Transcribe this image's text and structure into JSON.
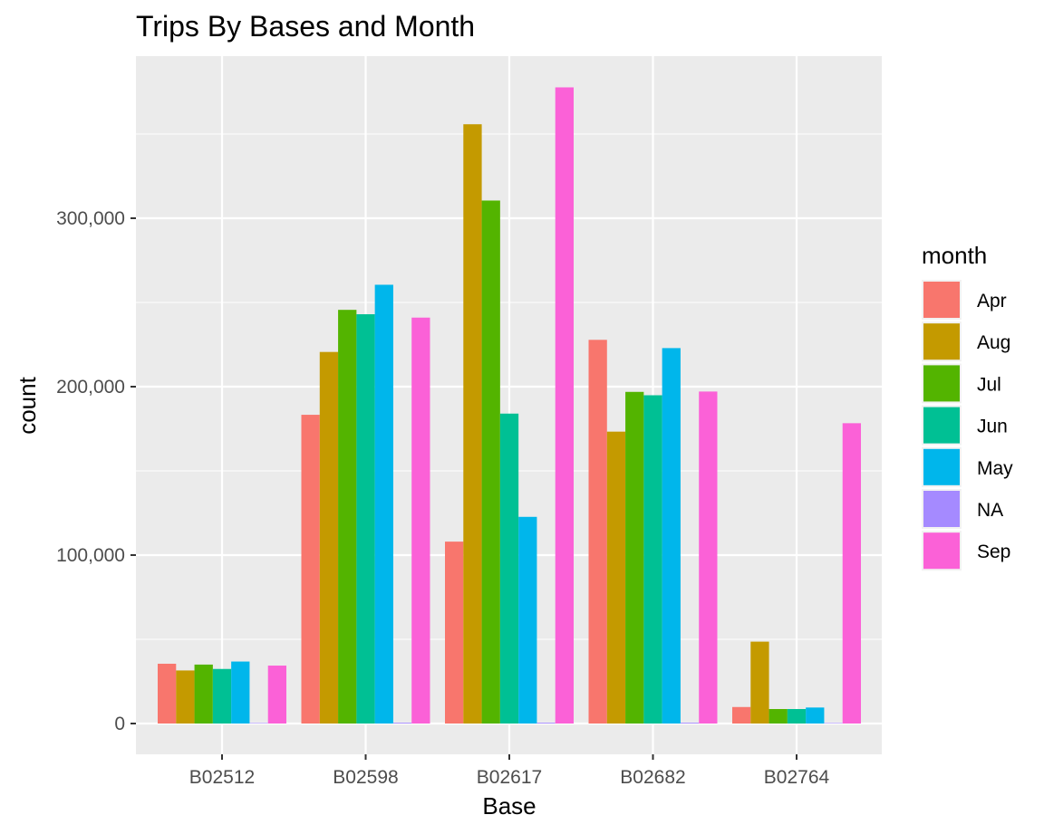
{
  "chart_data": {
    "type": "bar",
    "title": "Trips By Bases and Month",
    "xlabel": "Base",
    "ylabel": "count",
    "categories": [
      "B02512",
      "B02598",
      "B02617",
      "B02682",
      "B02764"
    ],
    "y_ticks": [
      0,
      100000,
      200000,
      300000
    ],
    "y_tick_labels": [
      "0",
      "100,000",
      "200,000",
      "300,000"
    ],
    "ylim": [
      -15000,
      396000
    ],
    "grid": true,
    "legend": {
      "title": "month",
      "position": "right"
    },
    "series": [
      {
        "name": "Apr",
        "color": "#F8766D",
        "values": [
          35500,
          183300,
          108000,
          227800,
          9800
        ]
      },
      {
        "name": "Aug",
        "color": "#C49A00",
        "values": [
          31500,
          220600,
          355800,
          173300,
          48600
        ]
      },
      {
        "name": "Jul",
        "color": "#53B400",
        "values": [
          35000,
          245600,
          310500,
          196900,
          8600
        ]
      },
      {
        "name": "Jun",
        "color": "#00C094",
        "values": [
          32400,
          243000,
          184000,
          194900,
          8600
        ]
      },
      {
        "name": "May",
        "color": "#00B6EB",
        "values": [
          36800,
          260500,
          122700,
          222900,
          9500
        ]
      },
      {
        "name": "NA",
        "color": "#A58AFF",
        "values": [
          0,
          500,
          500,
          500,
          0
        ]
      },
      {
        "name": "Sep",
        "color": "#FB61D7",
        "values": [
          34400,
          241000,
          377700,
          197100,
          178300
        ]
      }
    ]
  }
}
